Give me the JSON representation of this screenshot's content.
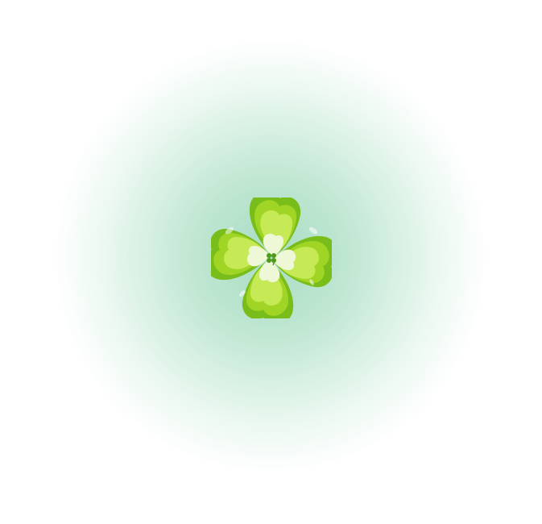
{
  "scene": {
    "background_center_color": "#a8dcc3",
    "background_edge_color": "#ffffff"
  },
  "clover": {
    "icon": "four-leaf-clover-icon",
    "leaf_outer_color": "#7fc31c",
    "leaf_mid_color": "#a6d82a",
    "leaf_inner_color": "#c9ec5a",
    "center_color": "#eef7d8",
    "small_clover_color": "#4f9a1a"
  }
}
